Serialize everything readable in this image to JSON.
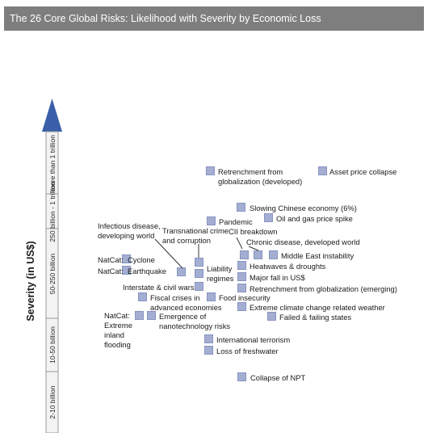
{
  "title": "The 26 Core Global Risks: Likelihood with Severity by Economic Loss",
  "chart_data": {
    "type": "scatter",
    "title": "The 26 Core Global Risks: Likelihood with Severity by Economic Loss",
    "ylabel": "Severity (in US$)",
    "xlabel": "",
    "y_bands": [
      "2-10 billion",
      "10-50 billion",
      "50-250 billion",
      "250 billion - 1 trillion",
      "more than 1 trillion"
    ],
    "marker_color": "#a3aed2",
    "arrow_color": "#3a5fa8",
    "risks": [
      {
        "name": "Retrenchment from\nglobalization (developed)",
        "x": 0.0,
        "y": 0.0
      },
      {
        "name": "Asset price collapse",
        "x": 0.0,
        "y": 0.0
      },
      {
        "name": "Slowing Chinese economy (6%)",
        "x": 0.0,
        "y": 0.0
      },
      {
        "name": "Oil and gas price spike",
        "x": 0.0,
        "y": 0.0
      },
      {
        "name": "Pandemic",
        "x": 0.0,
        "y": 0.0
      },
      {
        "name": "CII breakdown",
        "x": 0.0,
        "y": 0.0
      },
      {
        "name": "Transnational crime\nand corruption",
        "x": 0.0,
        "y": 0.0
      },
      {
        "name": "Infectious disease,\ndeveloping world",
        "x": 0.0,
        "y": 0.0
      },
      {
        "name": "Chronic disease, developed world",
        "x": 0.0,
        "y": 0.0
      },
      {
        "name": "Middle East instability",
        "x": 0.0,
        "y": 0.0
      },
      {
        "name": "Heatwaves & droughts",
        "x": 0.0,
        "y": 0.0
      },
      {
        "name": "Major fall in US$",
        "x": 0.0,
        "y": 0.0
      },
      {
        "name": "Retrenchment from globalization (emerging)",
        "x": 0.0,
        "y": 0.0
      },
      {
        "name": "NatCat:  Cyclone",
        "x": 0.0,
        "y": 0.0
      },
      {
        "name": "NatCat:  Earthquake",
        "x": 0.0,
        "y": 0.0
      },
      {
        "name": "Liability\nregimes",
        "x": 0.0,
        "y": 0.0
      },
      {
        "name": "Interstate & civil wars",
        "x": 0.0,
        "y": 0.0
      },
      {
        "name": "Fiscal crises in\nadvanced economies",
        "x": 0.0,
        "y": 0.0
      },
      {
        "name": "Food insecurity",
        "x": 0.0,
        "y": 0.0
      },
      {
        "name": "Extreme climate change related weather",
        "x": 0.0,
        "y": 0.0
      },
      {
        "name": "Failed & failing states",
        "x": 0.0,
        "y": 0.0
      },
      {
        "name": "NatCat:\nExtreme\ninland\nflooding",
        "x": 0.0,
        "y": 0.0
      },
      {
        "name": "Emergence of\nnanotechnology risks",
        "x": 0.0,
        "y": 0.0
      },
      {
        "name": "International terrorism",
        "x": 0.0,
        "y": 0.0
      },
      {
        "name": "Loss of freshwater",
        "x": 0.0,
        "y": 0.0
      },
      {
        "name": "Collapse of NPT",
        "x": 0.0,
        "y": 0.0
      }
    ]
  }
}
